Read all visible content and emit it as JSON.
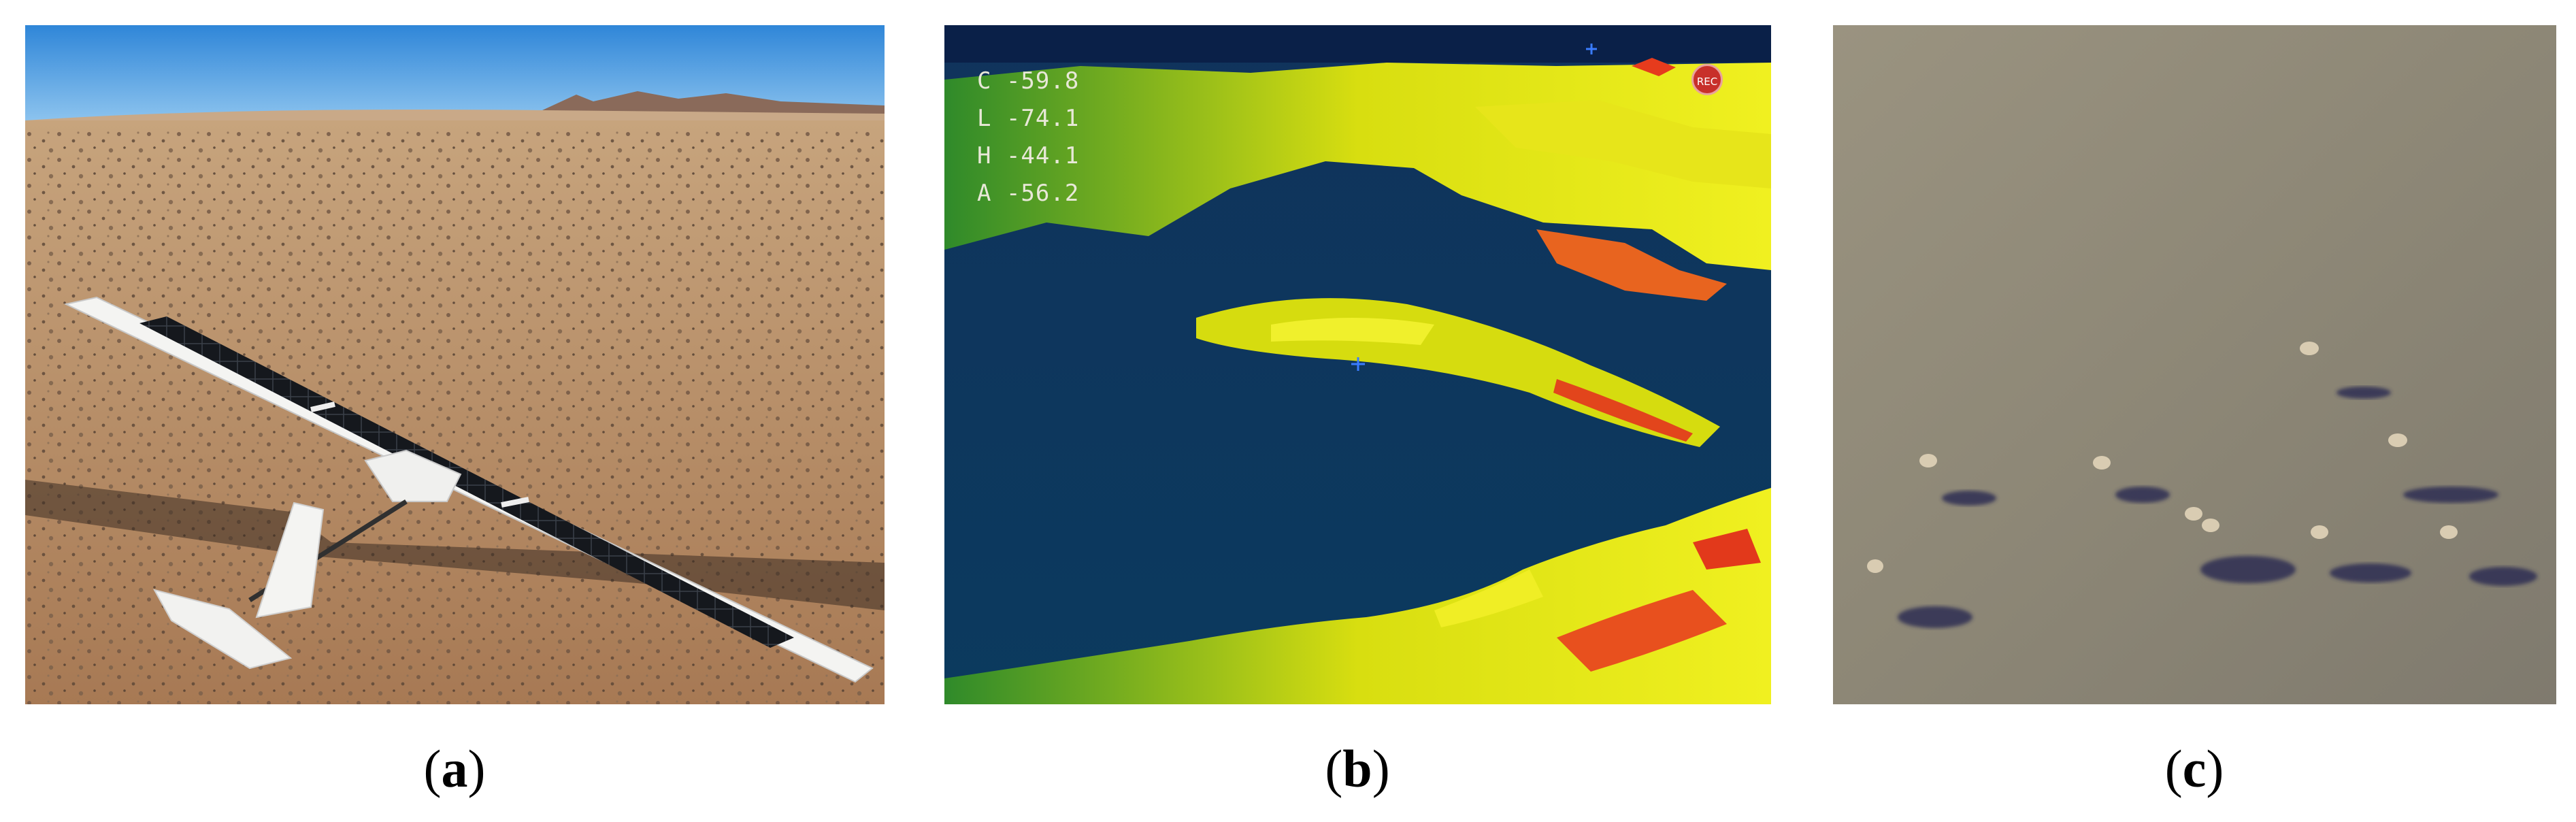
{
  "captions": {
    "a": {
      "open": "(",
      "letter": "a",
      "close": ")"
    },
    "b": {
      "open": "(",
      "letter": "b",
      "close": ")"
    },
    "c": {
      "open": "(",
      "letter": "c",
      "close": ")"
    }
  },
  "thermal_overlay": {
    "lines": [
      "C -59.8",
      "L -74.1",
      "H -44.1",
      "A -56.2"
    ],
    "rec_label": "REC"
  },
  "colors": {
    "sky": "#4f9fe0",
    "desert": "#b98e63",
    "thermal_cold": "#0b3a66",
    "thermal_warm": "#e6e600",
    "thermal_hot": "#e23a1e",
    "steppe": "#8b8474"
  },
  "icons": [
    "crosshair-icon",
    "rec-indicator-icon"
  ]
}
